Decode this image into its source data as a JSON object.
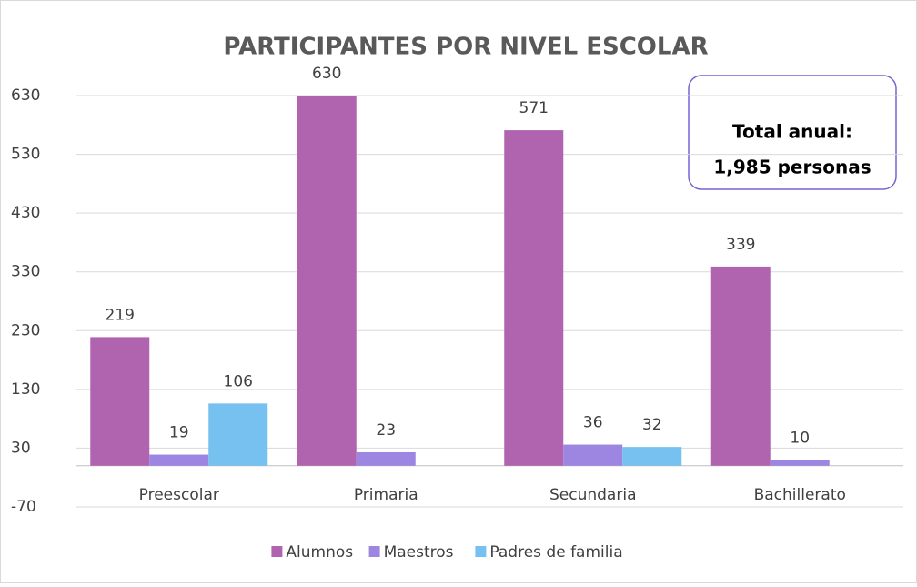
{
  "chart_data": {
    "type": "bar",
    "title": "PARTICIPANTES POR NIVEL ESCOLAR",
    "categories": [
      "Preescolar",
      "Primaria",
      "Secundaria",
      "Bachillerato"
    ],
    "series": [
      {
        "name": "Alumnos",
        "color": "#b064b0",
        "values": [
          219,
          630,
          571,
          339
        ]
      },
      {
        "name": "Maestros",
        "color": "#9d85e2",
        "values": [
          19,
          23,
          36,
          10
        ]
      },
      {
        "name": "Padres de familia",
        "color": "#76c1ef",
        "values": [
          106,
          null,
          32,
          null
        ]
      }
    ],
    "ylim": [
      -70,
      630
    ],
    "yticks": [
      -70,
      30,
      130,
      230,
      330,
      430,
      530,
      630
    ],
    "grid": true,
    "annotation": [
      "Total anual:",
      "1,985 personas"
    ]
  }
}
